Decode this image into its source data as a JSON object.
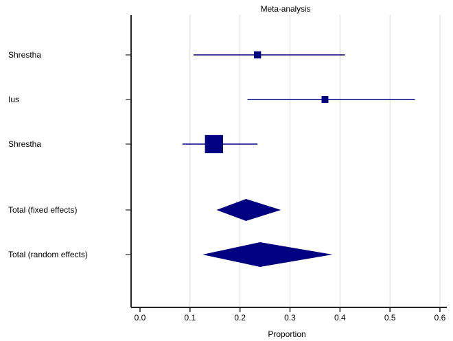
{
  "chart_data": {
    "type": "forest",
    "title": "Meta-analysis",
    "xlabel": "Proportion",
    "xlim": [
      0.0,
      0.6
    ],
    "xticks": [
      0.0,
      0.1,
      0.2,
      0.3,
      0.4,
      0.5,
      0.6
    ],
    "xtick_labels": [
      "0.0",
      "0.1",
      "0.2",
      "0.3",
      "0.4",
      "0.5",
      "0.6"
    ],
    "grid": true,
    "studies": [
      {
        "label": "Shrestha",
        "estimate": 0.235,
        "lower": 0.107,
        "upper": 0.41,
        "weight": 0.12
      },
      {
        "label": "Ius",
        "estimate": 0.37,
        "lower": 0.215,
        "upper": 0.55,
        "weight": 0.11
      },
      {
        "label": "Shrestha",
        "estimate": 0.148,
        "lower": 0.085,
        "upper": 0.235,
        "weight": 0.77
      }
    ],
    "pooled": [
      {
        "label": "Total (fixed effects)",
        "estimate": 0.212,
        "lower": 0.153,
        "upper": 0.282
      },
      {
        "label": "Total (random effects)",
        "estimate": 0.24,
        "lower": 0.125,
        "upper": 0.385
      }
    ],
    "colors": {
      "marker": "#000080",
      "axis": "#222222",
      "grid": "#d8d8d8"
    }
  }
}
